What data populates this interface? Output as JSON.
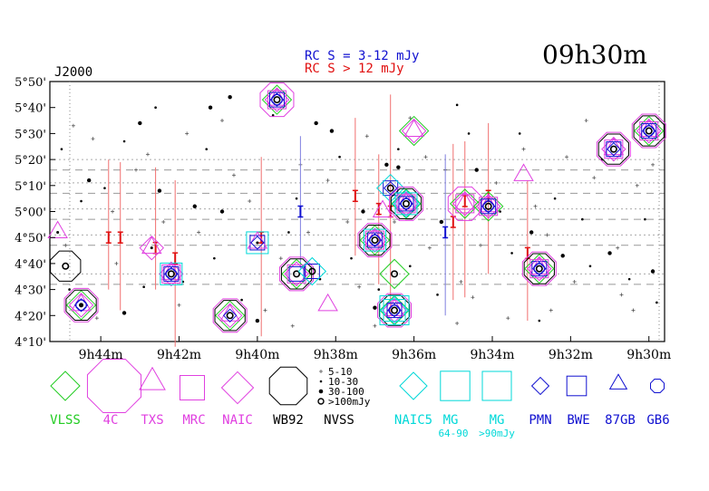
{
  "colors": {
    "vlss": "#22cc22",
    "fourc": "#e040e0",
    "blue": "#1010d0",
    "red": "#e01010",
    "cyan": "#00d8d8",
    "black": "#000000",
    "grey": "#888888",
    "pink": "#f07070"
  },
  "header": {
    "title": "09h30m",
    "epoch": "J2000",
    "rc_line1": "RC S = 3-12 mJy",
    "rc_line2": "RC S > 12 mJy"
  },
  "chart_data": {
    "type": "scatter",
    "title": "09h30m",
    "xlabel": "",
    "ylabel": "",
    "x_ticks": [
      "9h44m",
      "9h42m",
      "9h40m",
      "9h38m",
      "9h36m",
      "9h34m",
      "9h32m",
      "9h30m"
    ],
    "x_tick_minutes": [
      44,
      42,
      40,
      38,
      36,
      34,
      32,
      30
    ],
    "y_ticks": [
      "4°10'",
      "4°20'",
      "4°30'",
      "4°40'",
      "4°50'",
      "5°00'",
      "5°10'",
      "5°20'",
      "5°30'",
      "5°40'",
      "5°50'"
    ],
    "y_tick_arcmin": [
      250,
      260,
      270,
      280,
      290,
      300,
      310,
      320,
      330,
      340,
      350
    ],
    "xlim_ra_minutes": [
      45.3,
      29.6
    ],
    "ylim_dec_arcmin": [
      250,
      350
    ],
    "scan_lines_dec_arcmin": [
      272,
      276,
      287,
      291,
      297,
      301,
      307,
      311,
      316,
      320
    ],
    "sources": [
      {
        "ra": 44.5,
        "dec": 264,
        "sym": [
          "naic_dia",
          "vlss_dia",
          "fourc_oct",
          "txs_tri",
          "pmn_dia",
          "gb6_oct",
          "wb92"
        ],
        "nvss": "large"
      },
      {
        "ra": 44.9,
        "dec": 279,
        "sym": [
          "wb92"
        ],
        "nvss": "ring"
      },
      {
        "ra": 45.1,
        "dec": 292,
        "sym": [
          "txs_tri"
        ],
        "nvss": "small"
      },
      {
        "ra": 42.7,
        "dec": 286,
        "sym": [
          "txs_tri",
          "naic_dia"
        ],
        "nvss": "small"
      },
      {
        "ra": 42.2,
        "dec": 276,
        "sym": [
          "naic_dia",
          "mg_sq",
          "mrc_sq",
          "txs_tri",
          "bwe_sq",
          "pmn_dia",
          "gb6_oct"
        ],
        "nvss": "ring"
      },
      {
        "ra": 40.7,
        "dec": 260,
        "sym": [
          "vlss_dia",
          "naic_dia",
          "fourc_oct",
          "wb92",
          "txs_tri",
          "pmn_dia"
        ],
        "nvss": "ring"
      },
      {
        "ra": 40.0,
        "dec": 288,
        "sym": [
          "mg_sq",
          "bwe_sq",
          "txs_tri",
          "pmn_dia"
        ],
        "nvss": "small"
      },
      {
        "ra": 39.5,
        "dec": 343,
        "sym": [
          "fourc_oct",
          "vlss_dia",
          "txs_tri",
          "naic_dia",
          "mrc_sq",
          "bwe_sq",
          "gb6_oct",
          "pmn_dia"
        ],
        "nvss": "ring"
      },
      {
        "ra": 39.0,
        "dec": 276,
        "sym": [
          "vlss_dia",
          "fourc_oct",
          "wb92",
          "naic_dia",
          "mrc_sq",
          "bwe_sq"
        ],
        "nvss": "ring"
      },
      {
        "ra": 38.6,
        "dec": 277,
        "sym": [
          "bwe_sq",
          "naic5_dia"
        ],
        "nvss": "ring"
      },
      {
        "ra": 38.2,
        "dec": 264,
        "sym": [
          "txs_tri"
        ],
        "nvss": "none"
      },
      {
        "ra": 37.0,
        "dec": 289,
        "sym": [
          "wb92",
          "fourc_oct",
          "vlss_dia",
          "naic_dia",
          "mg_sq",
          "mrc_sq",
          "txs_tri",
          "bwe_sq",
          "pmn_dia",
          "gb6_oct"
        ],
        "nvss": "ring"
      },
      {
        "ra": 36.5,
        "dec": 276,
        "sym": [
          "vlss_dia"
        ],
        "nvss": "ring"
      },
      {
        "ra": 36.5,
        "dec": 262,
        "sym": [
          "fourc_oct",
          "wb92",
          "vlss_dia",
          "naic_dia",
          "naic5_dia",
          "mg_sq",
          "mg_big",
          "txs_tri",
          "bwe_sq",
          "pmn_dia",
          "gb6_oct"
        ],
        "nvss": "ring"
      },
      {
        "ra": 36.6,
        "dec": 309,
        "sym": [
          "bwe_sq",
          "naic5_dia",
          "pmn_dia"
        ],
        "nvss": "ring"
      },
      {
        "ra": 36.2,
        "dec": 303,
        "sym": [
          "wb92",
          "fourc_oct",
          "vlss_dia",
          "naic_dia",
          "naic5_dia",
          "mg_sq",
          "mrc_sq",
          "txs_tri",
          "bwe_sq",
          "pmn_dia",
          "gb6_oct"
        ],
        "nvss": "ring"
      },
      {
        "ra": 36.0,
        "dec": 331,
        "sym": [
          "vlss_dia",
          "txs_tri",
          "naic_dia"
        ],
        "nvss": "none"
      },
      {
        "ra": 36.8,
        "dec": 300,
        "sym": [
          "txs_tri"
        ],
        "nvss": "none"
      },
      {
        "ra": 34.7,
        "dec": 303,
        "sym": [
          "vlss_dia",
          "naic_dia",
          "txs_tri",
          "mrc_sq",
          "fourc_oct"
        ],
        "nvss": "none"
      },
      {
        "ra": 34.1,
        "dec": 302,
        "sym": [
          "vlss_dia",
          "txs_tri",
          "naic_dia",
          "mrc_sq",
          "bwe_sq",
          "gb6_oct",
          "pmn_dia"
        ],
        "nvss": "ring"
      },
      {
        "ra": 33.2,
        "dec": 314,
        "sym": [
          "txs_tri"
        ],
        "nvss": "none"
      },
      {
        "ra": 32.8,
        "dec": 278,
        "sym": [
          "wb92",
          "vlss_dia",
          "naic_dia",
          "fourc_oct",
          "mrc_sq",
          "bwe_sq",
          "txs_tri",
          "pmn_dia",
          "gb6_oct"
        ],
        "nvss": "ring"
      },
      {
        "ra": 30.9,
        "dec": 324,
        "sym": [
          "wb92",
          "fourc_oct",
          "txs_tri",
          "naic_dia",
          "mrc_sq",
          "bwe_sq",
          "pmn_dia"
        ],
        "nvss": "ring"
      },
      {
        "ra": 30.0,
        "dec": 331,
        "sym": [
          "wb92",
          "vlss_dia",
          "fourc_oct",
          "naic_dia",
          "txs_tri",
          "mrc_sq",
          "bwe_sq",
          "pmn_dia",
          "gb6_oct"
        ],
        "nvss": "ring"
      }
    ],
    "rc_bars": [
      {
        "ra": 43.8,
        "dec": 290,
        "lo": 270,
        "hi": 320,
        "class": "bright"
      },
      {
        "ra": 43.5,
        "dec": 290,
        "lo": 262,
        "hi": 319,
        "class": "bright"
      },
      {
        "ra": 42.6,
        "dec": 286,
        "lo": 270,
        "hi": 317,
        "class": "bright"
      },
      {
        "ra": 42.1,
        "dec": 282,
        "lo": 248,
        "hi": 312,
        "class": "bright"
      },
      {
        "ra": 39.9,
        "dec": 290,
        "lo": 252,
        "hi": 321,
        "class": "bright"
      },
      {
        "ra": 38.9,
        "dec": 300,
        "lo": 278,
        "hi": 329,
        "class": "faint"
      },
      {
        "ra": 37.5,
        "dec": 306,
        "lo": 283,
        "hi": 336,
        "class": "bright"
      },
      {
        "ra": 36.9,
        "dec": 301,
        "lo": 272,
        "hi": 322,
        "class": "bright"
      },
      {
        "ra": 36.6,
        "dec": 300,
        "lo": 260,
        "hi": 345,
        "class": "bright"
      },
      {
        "ra": 35.2,
        "dec": 292,
        "lo": 260,
        "hi": 322,
        "class": "faint"
      },
      {
        "ra": 35.0,
        "dec": 296,
        "lo": 266,
        "hi": 326,
        "class": "bright"
      },
      {
        "ra": 34.7,
        "dec": 304,
        "lo": 267,
        "hi": 327,
        "class": "bright"
      },
      {
        "ra": 34.1,
        "dec": 306,
        "lo": 276,
        "hi": 334,
        "class": "bright"
      },
      {
        "ra": 33.1,
        "dec": 284,
        "lo": 258,
        "hi": 312,
        "class": "bright"
      }
    ],
    "nvss_field": {
      "large": [
        [
          41.6,
          302
        ],
        [
          42.5,
          308
        ],
        [
          43.4,
          261
        ],
        [
          41.2,
          340
        ],
        [
          40.7,
          344
        ],
        [
          38.5,
          334
        ],
        [
          37.3,
          300
        ],
        [
          36.7,
          318
        ],
        [
          36.4,
          317
        ],
        [
          34.4,
          316
        ],
        [
          33.0,
          292
        ],
        [
          32.2,
          283
        ],
        [
          31.0,
          284
        ],
        [
          29.9,
          277
        ],
        [
          44.3,
          312
        ],
        [
          40.0,
          258
        ],
        [
          38.1,
          331
        ],
        [
          35.3,
          296
        ],
        [
          43.0,
          334
        ],
        [
          40.9,
          300
        ],
        [
          37.0,
          263
        ]
      ],
      "mid": [
        [
          44.5,
          304
        ],
        [
          43.9,
          309
        ],
        [
          42.9,
          271
        ],
        [
          41.3,
          324
        ],
        [
          39.0,
          305
        ],
        [
          37.9,
          321
        ],
        [
          36.4,
          324
        ],
        [
          34.6,
          330
        ],
        [
          33.5,
          284
        ],
        [
          32.8,
          258
        ],
        [
          31.5,
          279
        ],
        [
          30.5,
          274
        ],
        [
          44.8,
          270
        ],
        [
          40.4,
          266
        ],
        [
          39.2,
          292
        ],
        [
          38.4,
          274
        ],
        [
          36.9,
          270
        ],
        [
          35.4,
          268
        ],
        [
          33.8,
          300
        ],
        [
          32.4,
          305
        ],
        [
          31.7,
          297
        ],
        [
          29.8,
          265
        ],
        [
          41.9,
          273
        ],
        [
          42.6,
          340
        ],
        [
          45.0,
          324
        ],
        [
          43.4,
          327
        ],
        [
          39.6,
          337
        ],
        [
          37.6,
          282
        ],
        [
          34.9,
          341
        ],
        [
          33.3,
          330
        ],
        [
          31.2,
          320
        ],
        [
          30.1,
          297
        ],
        [
          41.1,
          282
        ],
        [
          36.1,
          279
        ]
      ],
      "small": [
        [
          44.7,
          333
        ],
        [
          44.2,
          328
        ],
        [
          43.7,
          300
        ],
        [
          43.1,
          316
        ],
        [
          42.4,
          296
        ],
        [
          41.8,
          330
        ],
        [
          40.9,
          335
        ],
        [
          40.2,
          304
        ],
        [
          39.8,
          262
        ],
        [
          38.9,
          318
        ],
        [
          38.2,
          312
        ],
        [
          37.7,
          296
        ],
        [
          37.2,
          329
        ],
        [
          36.9,
          289
        ],
        [
          36.1,
          336
        ],
        [
          35.7,
          321
        ],
        [
          35.2,
          316
        ],
        [
          34.8,
          273
        ],
        [
          34.3,
          287
        ],
        [
          33.9,
          311
        ],
        [
          33.2,
          324
        ],
        [
          32.6,
          291
        ],
        [
          32.1,
          321
        ],
        [
          31.6,
          335
        ],
        [
          30.8,
          286
        ],
        [
          30.3,
          310
        ],
        [
          29.9,
          318
        ],
        [
          44.9,
          287
        ],
        [
          43.6,
          280
        ],
        [
          42.8,
          322
        ],
        [
          41.5,
          292
        ],
        [
          40.6,
          314
        ],
        [
          39.4,
          282
        ],
        [
          38.7,
          292
        ],
        [
          37.4,
          271
        ],
        [
          36.5,
          296
        ],
        [
          35.6,
          286
        ],
        [
          34.5,
          267
        ],
        [
          33.6,
          259
        ],
        [
          32.9,
          302
        ],
        [
          31.9,
          273
        ],
        [
          30.7,
          268
        ],
        [
          44.1,
          259
        ],
        [
          42.0,
          264
        ],
        [
          39.1,
          256
        ],
        [
          37.0,
          256
        ],
        [
          34.9,
          257
        ],
        [
          32.5,
          262
        ],
        [
          30.4,
          262
        ],
        [
          31.4,
          313
        ]
      ]
    },
    "legend": [
      {
        "label": "VLSS",
        "sym": "vlss_dia",
        "color": "vlss"
      },
      {
        "label": "4C",
        "sym": "fourc_oct",
        "color": "fourc"
      },
      {
        "label": "TXS",
        "sym": "txs_tri",
        "color": "fourc"
      },
      {
        "label": "MRC",
        "sym": "mrc_sq",
        "color": "fourc"
      },
      {
        "label": "NAIC",
        "sym": "naic_dia",
        "color": "fourc"
      },
      {
        "label": "WB92",
        "sym": "wb92",
        "color": "black"
      },
      {
        "label": "NVSS",
        "sym": "nvss",
        "color": "black"
      },
      {
        "label": "NAIC5",
        "sym": "naic5_dia",
        "color": "cyan"
      },
      {
        "label": "MG",
        "sym": "mg_sq",
        "color": "cyan"
      },
      {
        "label": "MG",
        "sym": "mg_big",
        "color": "cyan"
      },
      {
        "label": "PMN",
        "sym": "pmn_dia",
        "color": "blue"
      },
      {
        "label": "BWE",
        "sym": "bwe_sq",
        "color": "blue"
      },
      {
        "label": "87GB",
        "sym": "gb87_tri",
        "color": "blue"
      },
      {
        "label": "GB6",
        "sym": "gb6_oct",
        "color": "blue"
      }
    ],
    "mg_sublabels": [
      "64-90",
      ">90mJy"
    ],
    "nvss_sizes": [
      "5-10",
      "10-30",
      "30-100",
      ">100mJy"
    ]
  }
}
